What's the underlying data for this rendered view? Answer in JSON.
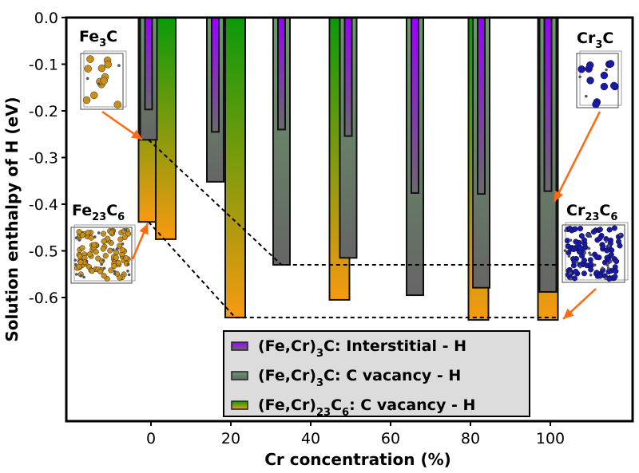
{
  "chart_data": {
    "type": "bar",
    "title": "",
    "xlabel": "Cr concentration (%)",
    "ylabel": "Solution enthalpy of H (eV)",
    "xlim": [
      -21,
      120
    ],
    "ylim": [
      -0.865,
      0.0
    ],
    "xticks": [
      0,
      20,
      40,
      60,
      80,
      100
    ],
    "yticks": [
      0.0,
      -0.1,
      -0.2,
      -0.3,
      -0.4,
      -0.5,
      -0.6
    ],
    "ytick_labels": [
      "0.0",
      "-0.1",
      "-0.2",
      "-0.3",
      "-0.4",
      "-0.5",
      "-0.6"
    ],
    "grid": false,
    "legend_position": "bottom-center",
    "series": [
      {
        "name": "(Fe,Cr)3C: Interstitial - H",
        "legend_parts": {
          "main": "(Fe,Cr)",
          "sub1": "3",
          "mid": "C",
          "sub2": "",
          "rest": ": Interstitial - H"
        },
        "color_top": "#9a00ff",
        "color_bottom": "#6a6a6a",
        "x": [
          0,
          16.7,
          33.3,
          50,
          66.7,
          83.3,
          100
        ],
        "values": [
          -0.197,
          -0.245,
          -0.24,
          -0.254,
          -0.376,
          -0.378,
          -0.372
        ]
      },
      {
        "name": "(Fe,Cr)3C: C vacancy - H",
        "legend_parts": {
          "main": "(Fe,Cr)",
          "sub1": "3",
          "mid": "C",
          "sub2": "",
          "rest": ": C vacancy - H"
        },
        "color_top": "#6a9a6a",
        "color_bottom": "#656565",
        "x": [
          0,
          16.7,
          33.3,
          50,
          66.7,
          83.3,
          100
        ],
        "values": [
          -0.262,
          -0.352,
          -0.53,
          -0.515,
          -0.595,
          -0.579,
          -0.588
        ]
      },
      {
        "name": "(Fe,Cr)23C6: C vacancy - H",
        "legend_parts": {
          "main": "(Fe,Cr)",
          "sub1": "23",
          "mid": "C",
          "sub2": "6",
          "rest": ": C vacancy - H"
        },
        "color_top": "#0a9a0a",
        "color_bottom": "#f89a10",
        "x": [
          0,
          4.3,
          21.7,
          47.8,
          82.6,
          100
        ],
        "values": [
          -0.438,
          -0.475,
          -0.643,
          -0.605,
          -0.648,
          -0.648
        ]
      }
    ],
    "annotations": [
      {
        "label": "Fe3C",
        "main": "Fe",
        "sub": "3",
        "tail": "C",
        "sub2": "",
        "atom_color": "#c8901a"
      },
      {
        "label": "Fe23C6",
        "main": "Fe",
        "sub": "23",
        "tail": "C",
        "sub2": "6",
        "atom_color": "#c8901a"
      },
      {
        "label": "Cr3C",
        "main": "Cr",
        "sub": "3",
        "tail": "C",
        "sub2": "",
        "atom_color": "#1a1aa8"
      },
      {
        "label": "Cr23C6",
        "main": "Cr",
        "sub": "23",
        "tail": "C",
        "sub2": "6",
        "atom_color": "#1a1aa8"
      }
    ],
    "reference_lines": [
      {
        "style": "dashed",
        "from": [
          0,
          -0.262
        ],
        "via": [
          33.3,
          -0.53
        ],
        "to_x": 100
      },
      {
        "style": "dashed",
        "from": [
          0,
          -0.438
        ],
        "via": [
          21.7,
          -0.643
        ],
        "to_x": 100
      }
    ],
    "arrow_color": "#ff6a10"
  }
}
